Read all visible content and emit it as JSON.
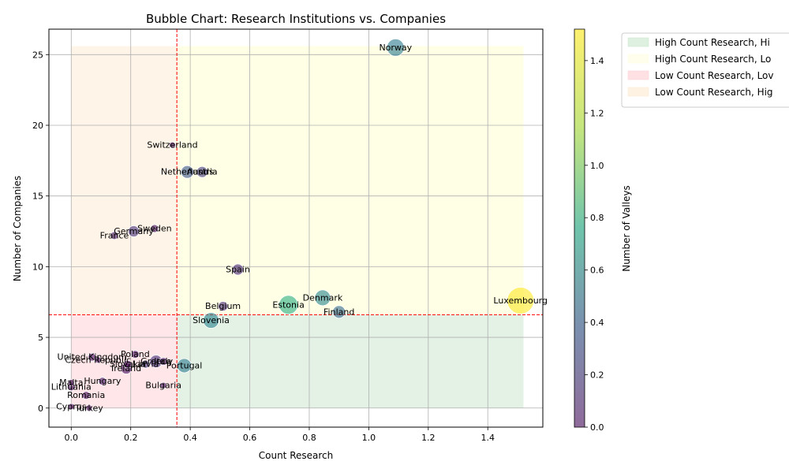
{
  "chart_data": {
    "type": "scatter",
    "title": "Bubble Chart: Research Institutions vs. Companies",
    "xlabel": "Count Research",
    "ylabel": "Number of Companies",
    "xlim": [
      -0.075,
      1.585
    ],
    "ylim": [
      -1.35,
      26.8
    ],
    "xticks": [
      "0.0",
      "0.2",
      "0.4",
      "0.6",
      "0.8",
      "1.0",
      "1.2",
      "1.4"
    ],
    "xtick_values": [
      0.0,
      0.2,
      0.4,
      0.6,
      0.8,
      1.0,
      1.2,
      1.4
    ],
    "yticks": [
      "0",
      "5",
      "10",
      "15",
      "20",
      "25"
    ],
    "ytick_values": [
      0,
      5,
      10,
      15,
      20,
      25
    ],
    "grid": true,
    "threshold_x": 0.355,
    "threshold_y": 6.6,
    "colorbar": {
      "label": "Number of Valleys",
      "min": 0,
      "max": 1.52,
      "ticks": [
        "0.0",
        "0.2",
        "0.4",
        "0.6",
        "0.8",
        "1.0",
        "1.2",
        "1.4"
      ],
      "tick_values": [
        0.0,
        0.2,
        0.4,
        0.6,
        0.8,
        1.0,
        1.2,
        1.4
      ]
    },
    "legend": {
      "placement": "outside-top-right",
      "entries": [
        {
          "label": "High Count Research, Hi",
          "color": "#c8e6c9"
        },
        {
          "label": "High Count Research, Lo",
          "color": "#fffde0"
        },
        {
          "label": "Low Count Research, Lov",
          "color": "#ffcdd2"
        },
        {
          "label": "Low Count Research, Hig",
          "color": "#fde9d0"
        }
      ]
    },
    "regions": [
      {
        "name": "high-research-high-companies",
        "x": [
          0.355,
          1.52
        ],
        "y": [
          6.6,
          25.6
        ],
        "color": "#ffffcc"
      },
      {
        "name": "high-research-low-companies",
        "x": [
          0.355,
          1.52
        ],
        "y": [
          0,
          6.6
        ],
        "color": "#c8e6c9"
      },
      {
        "name": "low-research-low-companies",
        "x": [
          0,
          0.355
        ],
        "y": [
          0,
          6.6
        ],
        "color": "#ffcdd2"
      },
      {
        "name": "low-research-high-companies",
        "x": [
          0,
          0.355
        ],
        "y": [
          6.6,
          25.6
        ],
        "color": "#fde9d0"
      }
    ],
    "points": [
      {
        "label": "Norway",
        "x": 1.09,
        "y": 25.5,
        "valleys": 0.62,
        "size": 11
      },
      {
        "label": "Switzerland",
        "x": 0.34,
        "y": 18.6,
        "valleys": 0.0,
        "size": 4
      },
      {
        "label": "Netherlands",
        "x": 0.39,
        "y": 16.7,
        "valleys": 0.4,
        "size": 8
      },
      {
        "label": "Austria",
        "x": 0.44,
        "y": 16.7,
        "valleys": 0.25,
        "size": 7
      },
      {
        "label": "Germany",
        "x": 0.21,
        "y": 12.5,
        "valleys": 0.2,
        "size": 7
      },
      {
        "label": "Sweden",
        "x": 0.28,
        "y": 12.7,
        "valleys": 0.05,
        "size": 5
      },
      {
        "label": "France",
        "x": 0.145,
        "y": 12.2,
        "valleys": 0.1,
        "size": 5
      },
      {
        "label": "Spain",
        "x": 0.56,
        "y": 9.8,
        "valleys": 0.15,
        "size": 7
      },
      {
        "label": "Estonia",
        "x": 0.73,
        "y": 7.3,
        "valleys": 0.95,
        "size": 12
      },
      {
        "label": "Denmark",
        "x": 0.845,
        "y": 7.8,
        "valleys": 0.68,
        "size": 10
      },
      {
        "label": "Finland",
        "x": 0.9,
        "y": 6.8,
        "valleys": 0.52,
        "size": 8
      },
      {
        "label": "Belgium",
        "x": 0.51,
        "y": 7.2,
        "valleys": 0.15,
        "size": 6
      },
      {
        "label": "Luxembourg",
        "x": 1.51,
        "y": 7.6,
        "valleys": 1.52,
        "size": 17
      },
      {
        "label": "Slovenia",
        "x": 0.47,
        "y": 6.2,
        "valleys": 0.65,
        "size": 10
      },
      {
        "label": "Poland",
        "x": 0.215,
        "y": 3.8,
        "valleys": 0.05,
        "size": 5
      },
      {
        "label": "United Kingdom",
        "x": 0.07,
        "y": 3.6,
        "valleys": 0.05,
        "size": 5
      },
      {
        "label": "Czech Republic",
        "x": 0.09,
        "y": 3.4,
        "valleys": 0.05,
        "size": 4
      },
      {
        "label": "Greece",
        "x": 0.285,
        "y": 3.3,
        "valleys": 0.2,
        "size": 8
      },
      {
        "label": "Latvia",
        "x": 0.25,
        "y": 3.1,
        "valleys": 0.25,
        "size": 5
      },
      {
        "label": "Italy",
        "x": 0.31,
        "y": 3.3,
        "valleys": 0.1,
        "size": 5
      },
      {
        "label": "Slovakia",
        "x": 0.19,
        "y": 3.1,
        "valleys": 0.0,
        "size": 5
      },
      {
        "label": "Portugal",
        "x": 0.38,
        "y": 3.0,
        "valleys": 0.62,
        "size": 9
      },
      {
        "label": "Ireland",
        "x": 0.185,
        "y": 2.8,
        "valleys": 0.05,
        "size": 7
      },
      {
        "label": "Hungary",
        "x": 0.105,
        "y": 1.9,
        "valleys": 0.1,
        "size": 5
      },
      {
        "label": "Malta",
        "x": 0.0,
        "y": 1.8,
        "valleys": 0.0,
        "size": 4
      },
      {
        "label": "Lithuania",
        "x": 0.0,
        "y": 1.5,
        "valleys": 0.05,
        "size": 5
      },
      {
        "label": "Bulgaria",
        "x": 0.31,
        "y": 1.6,
        "valleys": 0.05,
        "size": 4
      },
      {
        "label": "Romania",
        "x": 0.05,
        "y": 0.9,
        "valleys": 0.05,
        "size": 5
      },
      {
        "label": "Cyprus",
        "x": 0.0,
        "y": 0.1,
        "valleys": 0.0,
        "size": 4
      },
      {
        "label": "Turkey",
        "x": 0.06,
        "y": 0.0,
        "valleys": 0.0,
        "size": 4
      }
    ]
  }
}
